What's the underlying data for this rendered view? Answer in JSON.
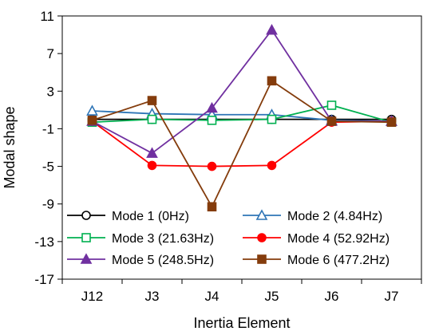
{
  "chart_data": {
    "type": "line",
    "title": "",
    "xlabel": "Inertia Element",
    "ylabel": "Modal shape",
    "categories": [
      "J12",
      "J3",
      "J4",
      "J5",
      "J6",
      "J7"
    ],
    "ylim": [
      -17,
      11
    ],
    "yticks": [
      11,
      7,
      3,
      -1,
      -5,
      -9,
      -13,
      -17
    ],
    "grid": false,
    "legend": "bottom, inside plot, two columns",
    "series": [
      {
        "name": "Mode 1 (0Hz)",
        "color": "#000000",
        "marker": "circle-open",
        "values": [
          0.0,
          0.0,
          0.0,
          0.0,
          0.0,
          0.0
        ]
      },
      {
        "name": "Mode 2 (4.84Hz)",
        "color": "#2e75b6",
        "marker": "triangle-open",
        "values": [
          0.9,
          0.6,
          0.5,
          0.5,
          -0.1,
          -0.2
        ]
      },
      {
        "name": "Mode 3 (21.63Hz)",
        "color": "#00b050",
        "marker": "square-open",
        "values": [
          -0.3,
          0.0,
          -0.1,
          0.0,
          1.5,
          -0.3
        ]
      },
      {
        "name": "Mode 4 (52.92Hz)",
        "color": "#ff0000",
        "marker": "circle-filled",
        "values": [
          -0.2,
          -4.9,
          -5.0,
          -4.9,
          -0.3,
          -0.2
        ]
      },
      {
        "name": "Mode 5 (248.5Hz)",
        "color": "#7030a0",
        "marker": "triangle-filled",
        "values": [
          -0.2,
          -3.6,
          1.2,
          9.5,
          -0.2,
          -0.2
        ]
      },
      {
        "name": "Mode 6 (477.2Hz)",
        "color": "#843c0c",
        "marker": "square-filled",
        "values": [
          -0.1,
          2.0,
          -9.3,
          4.1,
          -0.2,
          -0.3
        ]
      }
    ]
  }
}
